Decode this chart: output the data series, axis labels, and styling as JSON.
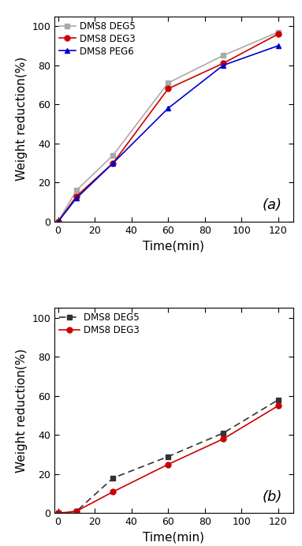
{
  "time": [
    0,
    10,
    30,
    60,
    90,
    120
  ],
  "a_deg5": [
    0,
    16,
    34,
    71,
    85,
    97
  ],
  "a_deg3": [
    0,
    13,
    30,
    68,
    81,
    96
  ],
  "a_peg6": [
    0,
    12,
    30,
    58,
    80,
    90
  ],
  "b_deg5": [
    0,
    1,
    18,
    29,
    41,
    58
  ],
  "b_deg3": [
    0,
    1,
    11,
    25,
    38,
    55
  ],
  "xlabel": "Time(min)",
  "ylabel": "Weight reduction(%)",
  "label_deg5_a": "DMS8 DEG5",
  "label_deg3_a": "DMS8 DEG3",
  "label_peg6_a": "DMS8 PEG6",
  "label_deg5_b": "DMS8 DEG5",
  "label_deg3_b": "DMS8 DEG3",
  "color_deg5_a": "#aaaaaa",
  "color_deg3_a": "#cc0000",
  "color_peg6_a": "#0000cc",
  "color_deg5_b": "#333333",
  "color_deg3_b": "#cc0000",
  "annotation_a": "(a)",
  "annotation_b": "(b)",
  "xlim": [
    -2,
    128
  ],
  "ylim_a": [
    0,
    105
  ],
  "ylim_b": [
    0,
    105
  ],
  "xticks": [
    0,
    20,
    40,
    60,
    80,
    100,
    120
  ],
  "yticks": [
    0,
    20,
    40,
    60,
    80,
    100
  ],
  "fontsize_label": 11,
  "fontsize_tick": 9,
  "fontsize_legend": 8.5,
  "fontsize_annot": 13
}
